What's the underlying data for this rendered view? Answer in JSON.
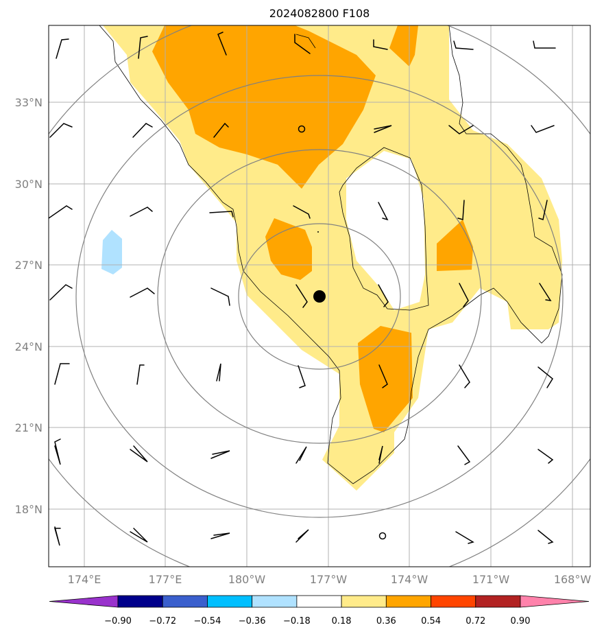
{
  "title": "2024082800 F108",
  "lat_labels": [
    {
      "deg": 33,
      "label": "33°N"
    },
    {
      "deg": 30,
      "label": "30°N"
    },
    {
      "deg": 27,
      "label": "27°N"
    },
    {
      "deg": 24,
      "label": "24°N"
    },
    {
      "deg": 21,
      "label": "21°N"
    },
    {
      "deg": 18,
      "label": "18°N"
    }
  ],
  "lon_labels": [
    {
      "deg": 174,
      "label": "174°E"
    },
    {
      "deg": 177,
      "label": "177°E"
    },
    {
      "deg": 180,
      "label": "180°W"
    },
    {
      "deg": 183,
      "label": "177°W"
    },
    {
      "deg": 186,
      "label": "174°W"
    },
    {
      "deg": 189,
      "label": "171°W"
    },
    {
      "deg": 192,
      "label": "168°W"
    }
  ],
  "colorbar": {
    "tick_labels": [
      "−0.90",
      "−0.72",
      "−0.54",
      "−0.36",
      "−0.18",
      "0.18",
      "0.36",
      "0.54",
      "0.72",
      "0.90"
    ],
    "colors": [
      "#9932cc",
      "#00008b",
      "#3a5fcd",
      "#00bfff",
      "#b0e2ff",
      "#ffffff",
      "#ffeb8a",
      "#ffa500",
      "#ff4500",
      "#b22222",
      "#ff82ab"
    ],
    "extend": "both"
  },
  "storm_center": {
    "lon": 183.35,
    "lat": 25.8
  },
  "colors": {
    "light_yellow": "#ffeb8a",
    "orange": "#ffa500",
    "light_blue": "#b0e2ff",
    "grid": "#b0b0b0",
    "range_rings": "#808080"
  }
}
